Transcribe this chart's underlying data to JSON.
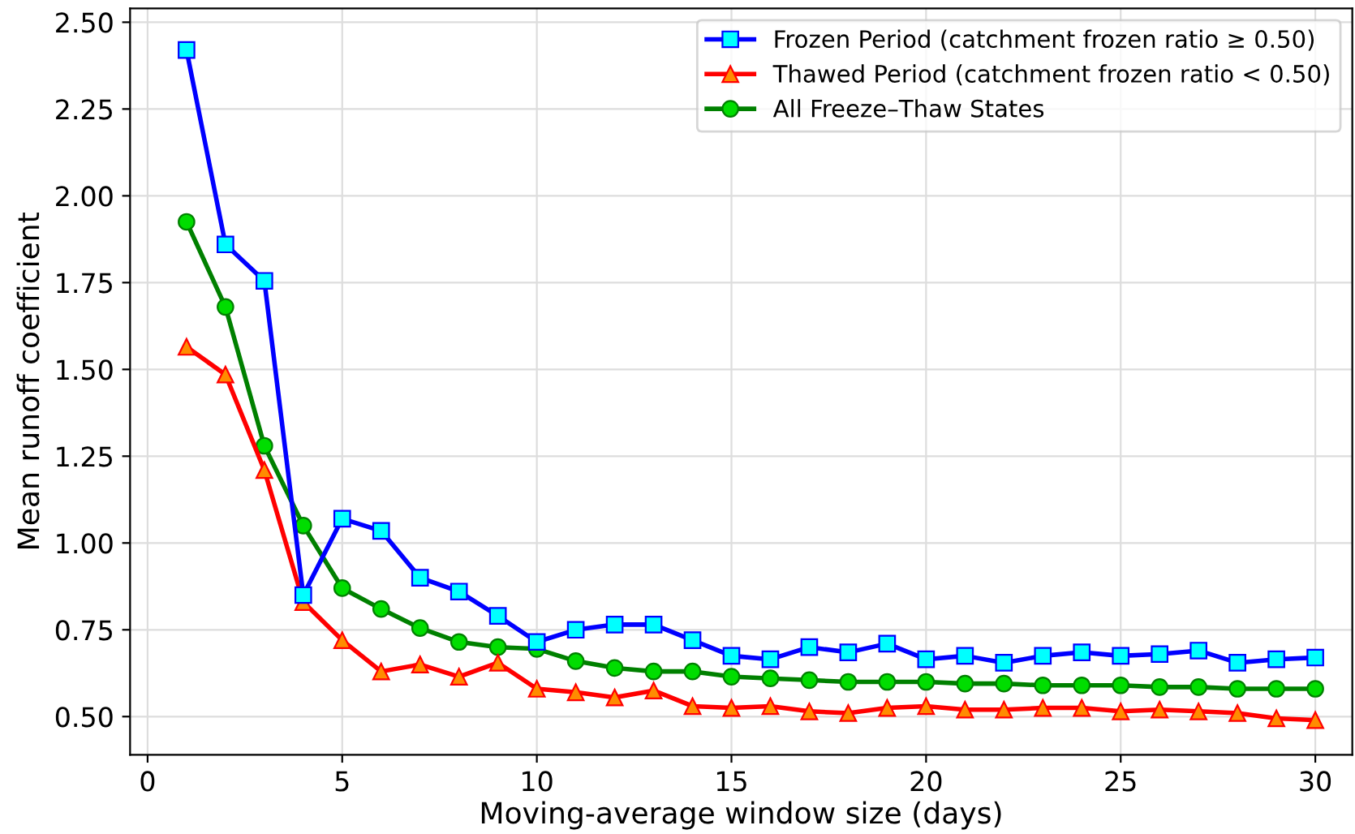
{
  "chart_data": {
    "type": "line",
    "xlabel": "Moving-average window size (days)",
    "ylabel": "Mean runoff coefficient",
    "x": [
      1,
      2,
      3,
      4,
      5,
      6,
      7,
      8,
      9,
      10,
      11,
      12,
      13,
      14,
      15,
      16,
      17,
      18,
      19,
      20,
      21,
      22,
      23,
      24,
      25,
      26,
      27,
      28,
      29,
      30
    ],
    "series": [
      {
        "name": "Frozen Period (catchment frozen ratio ≥ 0.50)",
        "color": "#0000ff",
        "marker": "square",
        "values": [
          2.42,
          1.86,
          1.755,
          0.85,
          1.07,
          1.035,
          0.9,
          0.86,
          0.79,
          0.715,
          0.75,
          0.765,
          0.765,
          0.72,
          0.675,
          0.665,
          0.7,
          0.685,
          0.71,
          0.665,
          0.675,
          0.655,
          0.675,
          0.685,
          0.675,
          0.68,
          0.69,
          0.655,
          0.665,
          0.67
        ]
      },
      {
        "name": "Thawed Period (catchment frozen ratio < 0.50)",
        "color": "#ff0000",
        "marker": "triangle",
        "values": [
          1.565,
          1.485,
          1.21,
          0.83,
          0.72,
          0.63,
          0.65,
          0.615,
          0.655,
          0.58,
          0.57,
          0.555,
          0.575,
          0.53,
          0.525,
          0.53,
          0.515,
          0.51,
          0.525,
          0.53,
          0.52,
          0.52,
          0.525,
          0.525,
          0.515,
          0.52,
          0.515,
          0.51,
          0.495,
          0.49
        ]
      },
      {
        "name": "All Freeze–Thaw States",
        "color": "#008000",
        "marker": "circle",
        "values": [
          1.925,
          1.68,
          1.28,
          1.05,
          0.87,
          0.81,
          0.755,
          0.715,
          0.7,
          0.695,
          0.66,
          0.64,
          0.63,
          0.63,
          0.615,
          0.61,
          0.605,
          0.6,
          0.6,
          0.6,
          0.595,
          0.595,
          0.59,
          0.59,
          0.59,
          0.585,
          0.585,
          0.58,
          0.58,
          0.58
        ]
      }
    ],
    "xlim": [
      -0.45,
      30.95
    ],
    "ylim": [
      0.39,
      2.54
    ],
    "xticks": [
      0,
      5,
      10,
      15,
      20,
      25,
      30
    ],
    "yticks": [
      {
        "value": 0.5,
        "label": "0.50"
      },
      {
        "value": 0.75,
        "label": "0.75"
      },
      {
        "value": 1.0,
        "label": "1.00"
      },
      {
        "value": 1.25,
        "label": "1.25"
      },
      {
        "value": 1.5,
        "label": "1.50"
      },
      {
        "value": 1.75,
        "label": "1.75"
      },
      {
        "value": 2.0,
        "label": "2.00"
      },
      {
        "value": 2.25,
        "label": "2.25"
      },
      {
        "value": 2.5,
        "label": "2.50"
      }
    ],
    "grid": true,
    "legend": "top right",
    "line_style": "solid"
  }
}
